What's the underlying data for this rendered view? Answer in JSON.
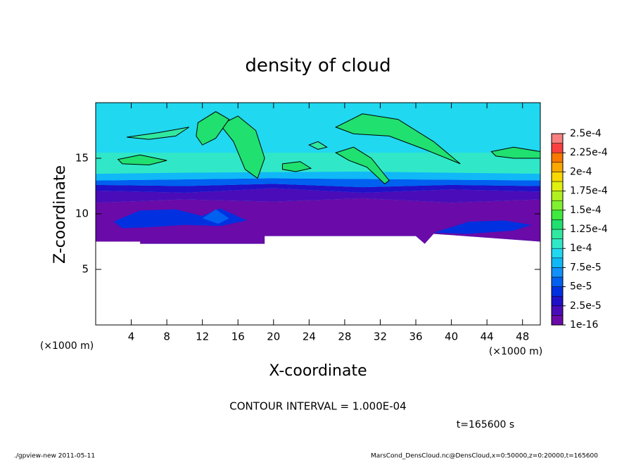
{
  "chart_data": {
    "type": "contour",
    "title": "density of cloud",
    "x_label": "X-coordinate",
    "y_label": "Z-coordinate",
    "x_unit_label": "(×1000 m)",
    "y_unit_label": "(×1000 m)",
    "xlim": [
      0,
      50
    ],
    "ylim": [
      0,
      20
    ],
    "xticks": [
      4,
      8,
      12,
      16,
      20,
      24,
      28,
      32,
      36,
      40,
      44,
      48
    ],
    "yticks": [
      5,
      10,
      15
    ],
    "colorbar": {
      "lim": [
        1e-16,
        0.00025
      ],
      "ticks": [
        {
          "value": 1e-16,
          "label": "1e-16"
        },
        {
          "value": 2.5e-05,
          "label": "2.5e-5"
        },
        {
          "value": 5e-05,
          "label": "5e-5"
        },
        {
          "value": 7.5e-05,
          "label": "7.5e-5"
        },
        {
          "value": 0.0001,
          "label": "1e-4"
        },
        {
          "value": 0.000125,
          "label": "1.25e-4"
        },
        {
          "value": 0.00015,
          "label": "1.5e-4"
        },
        {
          "value": 0.000175,
          "label": "1.75e-4"
        },
        {
          "value": 0.0002,
          "label": "2e-4"
        },
        {
          "value": 0.000225,
          "label": "2.25e-4"
        },
        {
          "value": 0.00025,
          "label": "2.5e-4"
        }
      ],
      "colors": [
        "#6a0aa8",
        "#4a0cb8",
        "#2010c8",
        "#0030e0",
        "#0060f0",
        "#1090f8",
        "#10b8f8",
        "#20d8f0",
        "#30e8c8",
        "#30e8a0",
        "#20e070",
        "#40e840",
        "#80f030",
        "#b0f020",
        "#e0f010",
        "#f8d800",
        "#f8a800",
        "#f87800",
        "#f84040",
        "#f88080"
      ]
    },
    "contour_interval": "CONTOUR INTERVAL = 1.000E-04",
    "time_label": "t=165600 s"
  },
  "footer_left": "./gpview-new  2011-05-11",
  "footer_right": "MarsCond_DensCloud.nc@DensCloud,x=0:50000,z=0:20000,t=165600"
}
